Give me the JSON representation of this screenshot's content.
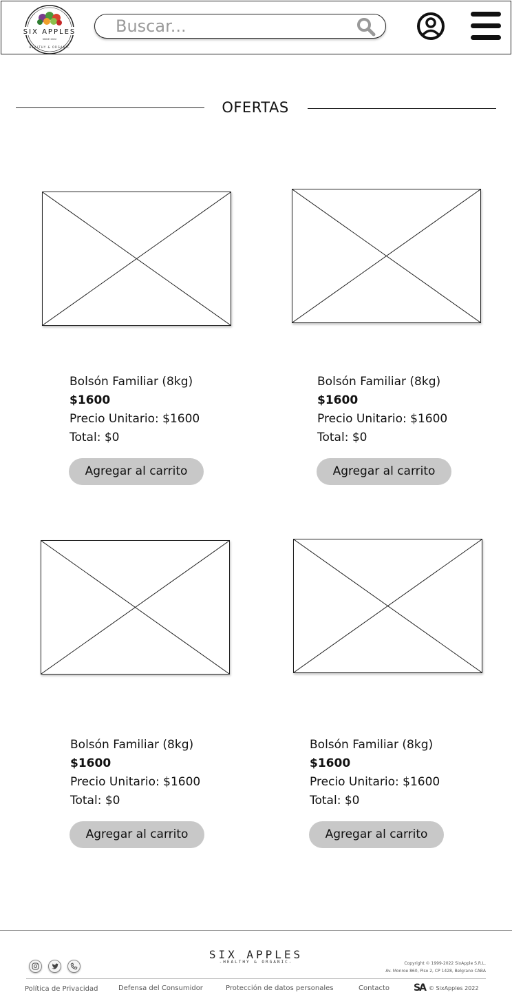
{
  "header": {
    "logo_text": "SIX APPLES",
    "logo_tagline": "HEALTHY & ORGANIC",
    "logo_since": "SINCE 2022",
    "search_placeholder": "Buscar..."
  },
  "section": {
    "title": "OFERTAS"
  },
  "products": [
    {
      "name": "Bolsón Familiar (8kg)",
      "price": "$1600",
      "unit_price": "Precio Unitario: $1600",
      "total": "Total: $0",
      "button": "Agregar al carrito"
    },
    {
      "name": "Bolsón Familiar (8kg)",
      "price": "$1600",
      "unit_price": "Precio Unitario: $1600",
      "total": "Total: $0",
      "button": "Agregar al carrito"
    },
    {
      "name": "Bolsón Familiar (8kg)",
      "price": "$1600",
      "unit_price": "Precio Unitario: $1600",
      "total": "Total: $0",
      "button": "Agregar al carrito"
    },
    {
      "name": "Bolsón Familiar (8kg)",
      "price": "$1600",
      "unit_price": "Precio Unitario: $1600",
      "total": "Total: $0",
      "button": "Agregar al carrito"
    }
  ],
  "footer": {
    "logo_main": "SIX APPLES",
    "logo_sub": "-HEALTHY & ORGANIC-",
    "copyright_line1": "Copyright © 1999-2022 SixApple S.R.L.",
    "copyright_line2": "Av. Monroe 860, Piso 2, CP 1428, Belgrano CABA",
    "links": [
      "Política de Privacidad",
      "Defensa del Consumidor",
      "Protección de datos personales",
      "Contacto"
    ],
    "brand_mark": "SA",
    "brand_copy": "© SixApples 2022",
    "social_icons": [
      "instagram-icon",
      "twitter-icon",
      "phone-icon"
    ]
  }
}
